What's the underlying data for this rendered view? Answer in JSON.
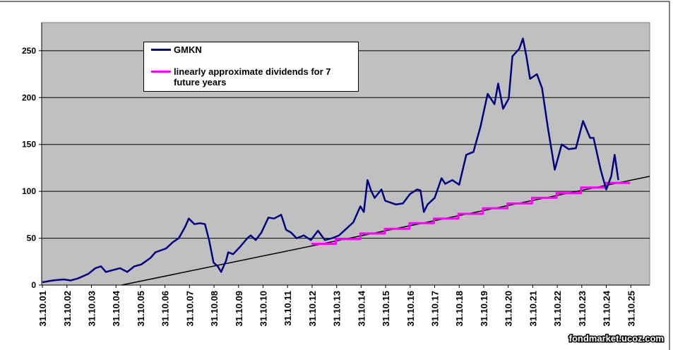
{
  "chart_data": {
    "type": "line",
    "xlim": [
      2001.8,
      2026.6
    ],
    "ylim": [
      0,
      280
    ],
    "yticks": [
      0,
      50,
      100,
      150,
      200,
      250
    ],
    "xticks": [
      {
        "value": 2001.83,
        "label": "31.10.01"
      },
      {
        "value": 2002.83,
        "label": "31.10.02"
      },
      {
        "value": 2003.83,
        "label": "31.10.03"
      },
      {
        "value": 2004.83,
        "label": "31.10.04"
      },
      {
        "value": 2005.83,
        "label": "31.10.05"
      },
      {
        "value": 2006.83,
        "label": "31.10.06"
      },
      {
        "value": 2007.83,
        "label": "31.10.07"
      },
      {
        "value": 2008.83,
        "label": "31.10.08"
      },
      {
        "value": 2009.83,
        "label": "31.10.09"
      },
      {
        "value": 2010.83,
        "label": "31.10.10"
      },
      {
        "value": 2011.83,
        "label": "31.10.11"
      },
      {
        "value": 2012.83,
        "label": "31.10.12"
      },
      {
        "value": 2013.83,
        "label": "31.10.13"
      },
      {
        "value": 2014.83,
        "label": "31.10.14"
      },
      {
        "value": 2015.83,
        "label": "31.10.15"
      },
      {
        "value": 2016.83,
        "label": "31.10.16"
      },
      {
        "value": 2017.83,
        "label": "31.10.17"
      },
      {
        "value": 2018.83,
        "label": "31.10.18"
      },
      {
        "value": 2019.83,
        "label": "31.10.19"
      },
      {
        "value": 2020.83,
        "label": "31.10.20"
      },
      {
        "value": 2021.83,
        "label": "31.10.21"
      },
      {
        "value": 2022.83,
        "label": "31.10.22"
      },
      {
        "value": 2023.83,
        "label": "31.10.23"
      },
      {
        "value": 2024.83,
        "label": "31.10.24"
      },
      {
        "value": 2025.83,
        "label": "31.10.25"
      }
    ],
    "grid": true,
    "series": [
      {
        "name": "GMKN",
        "color": "#000080",
        "x": [
          2001.83,
          2002.26,
          2002.69,
          2002.98,
          2003.27,
          2003.7,
          2003.99,
          2004.22,
          2004.42,
          2004.71,
          2005.0,
          2005.29,
          2005.58,
          2005.86,
          2006.24,
          2006.44,
          2006.87,
          2007.16,
          2007.39,
          2007.65,
          2007.8,
          2008.03,
          2008.26,
          2008.46,
          2008.63,
          2008.81,
          2008.98,
          2009.12,
          2009.32,
          2009.41,
          2009.61,
          2009.9,
          2010.19,
          2010.33,
          2010.53,
          2010.76,
          2011.05,
          2011.28,
          2011.57,
          2011.77,
          2011.97,
          2012.2,
          2012.49,
          2012.78,
          2013.07,
          2013.35,
          2013.64,
          2013.93,
          2014.22,
          2014.51,
          2014.8,
          2014.94,
          2015.09,
          2015.23,
          2015.38,
          2015.66,
          2015.81,
          2016.24,
          2016.53,
          2016.82,
          2017.11,
          2017.25,
          2017.39,
          2017.54,
          2017.83,
          2018.11,
          2018.26,
          2018.55,
          2018.83,
          2019.12,
          2019.41,
          2019.7,
          2019.99,
          2020.27,
          2020.42,
          2020.62,
          2020.85,
          2021.0,
          2021.28,
          2021.43,
          2021.57,
          2021.72,
          2022.0,
          2022.21,
          2022.44,
          2022.73,
          2023.01,
          2023.3,
          2023.59,
          2023.88,
          2024.17,
          2024.31,
          2024.6,
          2024.74,
          2024.83,
          2025.03,
          2025.17,
          2025.32
        ],
        "values": [
          3,
          5,
          6,
          5,
          7,
          12,
          18,
          20,
          14,
          16,
          18,
          14,
          20,
          22,
          29,
          35,
          39,
          46,
          50,
          62,
          71,
          65,
          66,
          65,
          48,
          24,
          20,
          14,
          26,
          35,
          33,
          41,
          50,
          53,
          48,
          56,
          72,
          71,
          75,
          59,
          56,
          50,
          53,
          48,
          58,
          48,
          50,
          53,
          60,
          67,
          84,
          78,
          112,
          101,
          93,
          102,
          90,
          86,
          87,
          97,
          102,
          101,
          78,
          86,
          93,
          114,
          108,
          112,
          107,
          139,
          142,
          169,
          204,
          193,
          215,
          188,
          199,
          244,
          252,
          263,
          244,
          220,
          225,
          210,
          169,
          123,
          150,
          145,
          146,
          175,
          157,
          157,
          123,
          110,
          102,
          116,
          139,
          112
        ]
      },
      {
        "name": "linearly approximate dividends for 7 future years",
        "color": "#ff00ff",
        "x": [
          2012.8,
          2013.8,
          2013.8,
          2014.8,
          2014.8,
          2015.8,
          2015.8,
          2016.8,
          2016.8,
          2017.8,
          2017.8,
          2018.8,
          2018.8,
          2019.8,
          2019.8,
          2020.8,
          2020.8,
          2021.8,
          2021.8,
          2022.8,
          2022.8,
          2023.8,
          2023.8,
          2024.8,
          2024.8,
          2025.8
        ],
        "values": [
          44,
          44,
          49,
          49,
          55,
          55,
          60,
          60,
          66,
          66,
          71,
          71,
          76,
          76,
          82,
          82,
          87,
          87,
          93,
          93,
          98,
          98,
          104,
          104,
          109,
          109
        ]
      },
      {
        "color": "#000000",
        "x": [
          2005.06,
          2026.6
        ],
        "values": [
          0,
          116
        ]
      }
    ]
  },
  "watermark": "fondmarket.ucoz.com"
}
